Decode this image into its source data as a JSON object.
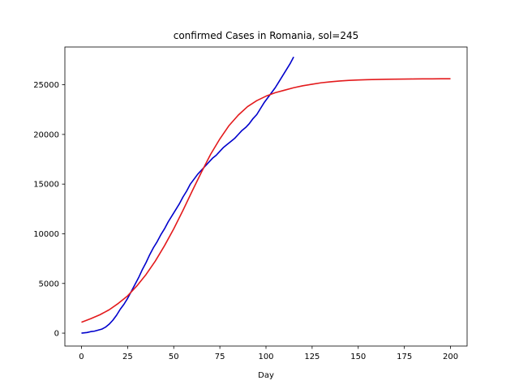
{
  "chart_data": {
    "type": "line",
    "title": "confirmed Cases in Romania, sol=245",
    "xlabel": "Day",
    "ylabel": "",
    "xlim": [
      -9,
      209
    ],
    "ylim": [
      -1300,
      28800
    ],
    "xticks": [
      0,
      25,
      50,
      75,
      100,
      125,
      150,
      175,
      200
    ],
    "yticks": [
      0,
      5000,
      10000,
      15000,
      20000,
      25000
    ],
    "grid": false,
    "series": [
      {
        "color": "#0000cc",
        "x": [
          0,
          3,
          5,
          7,
          9,
          11,
          13,
          15,
          17,
          19,
          21,
          23,
          25,
          27,
          29,
          31,
          33,
          35,
          37,
          39,
          41,
          43,
          45,
          47,
          49,
          51,
          53,
          55,
          57,
          59,
          61,
          63,
          65,
          67,
          69,
          71,
          73,
          75,
          77,
          79,
          81,
          83,
          85,
          87,
          89,
          91,
          93,
          95,
          97,
          99,
          101,
          103,
          105,
          107,
          109,
          111,
          113,
          115
        ],
        "y": [
          0,
          60,
          150,
          200,
          300,
          400,
          600,
          900,
          1300,
          1800,
          2400,
          2900,
          3500,
          4200,
          4900,
          5600,
          6400,
          7100,
          7900,
          8600,
          9200,
          9900,
          10500,
          11200,
          11800,
          12400,
          13000,
          13700,
          14300,
          15000,
          15500,
          16000,
          16400,
          16800,
          17200,
          17600,
          17900,
          18300,
          18700,
          19000,
          19300,
          19600,
          20000,
          20400,
          20700,
          21100,
          21600,
          22000,
          22600,
          23200,
          23700,
          24200,
          24700,
          25300,
          25900,
          26500,
          27100,
          27800
        ]
      },
      {
        "color": "#e31a1c",
        "x": [
          0,
          5,
          10,
          15,
          20,
          25,
          30,
          35,
          40,
          45,
          50,
          55,
          60,
          65,
          70,
          75,
          80,
          85,
          90,
          95,
          100,
          105,
          110,
          115,
          120,
          125,
          130,
          135,
          140,
          145,
          150,
          155,
          160,
          165,
          170,
          175,
          180,
          185,
          190,
          195,
          200
        ],
        "y": [
          1100,
          1450,
          1850,
          2350,
          3000,
          3750,
          4750,
          5900,
          7250,
          8800,
          10500,
          12350,
          14300,
          16200,
          18000,
          19550,
          20900,
          21950,
          22800,
          23400,
          23850,
          24200,
          24450,
          24700,
          24900,
          25050,
          25200,
          25300,
          25380,
          25440,
          25480,
          25510,
          25530,
          25550,
          25560,
          25570,
          25580,
          25590,
          25595,
          25600,
          25600
        ]
      }
    ]
  }
}
